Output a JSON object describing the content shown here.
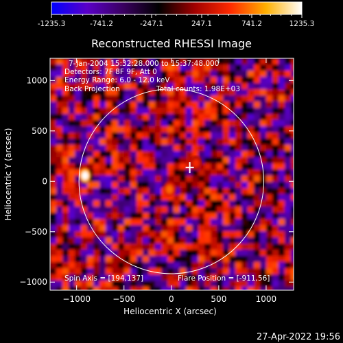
{
  "chart_data": {
    "type": "heatmap",
    "title": "Reconstructed RHESSI Image",
    "xlabel": "Heliocentric X (arcsec)",
    "ylabel": "Heliocentric Y (arcsec)",
    "xlim": [
      -1280,
      1290
    ],
    "ylim": [
      -1080,
      1220
    ],
    "x_ticks": [
      -1000,
      -500,
      0,
      500,
      1000
    ],
    "y_ticks": [
      -1000,
      -500,
      0,
      500,
      1000
    ],
    "colorbar": {
      "min": -1235.3,
      "max": 1235.3,
      "tick_labels": [
        "-1235.3",
        "-741.2",
        "-247.1",
        "247.1",
        "741.2",
        "1235.3"
      ],
      "colors": [
        "#0000ff",
        "#5a00c8",
        "#3a0060",
        "#000000",
        "#a00000",
        "#ff2a00",
        "#ffb000",
        "#ffffff"
      ]
    },
    "annotations": {
      "time_range": "7-Jan-2004 15:32:28.000 to 15:37:48.000",
      "detectors": "Detectors: 7F 8F 9F, Att 0",
      "energy_range": "Energy Range: 6.0 - 12.0 keV",
      "method": "Back Projection",
      "total_counts": "Total counts: 1.98E+03",
      "spin_axis": "Spin Axis = [194,137]",
      "flare_position": "Flare Position = [-911,56]"
    },
    "solar_limb_radius_arcsec": 975,
    "spin_axis_marker": [
      194,
      137
    ],
    "bright_sources": [
      {
        "x": -911,
        "y": 56,
        "value": 1235.3
      },
      {
        "x": -20,
        "y": -80,
        "value": 700
      },
      {
        "x": 260,
        "y": 180,
        "value": 500
      }
    ]
  },
  "timestamp": "27-Apr-2022 19:56"
}
